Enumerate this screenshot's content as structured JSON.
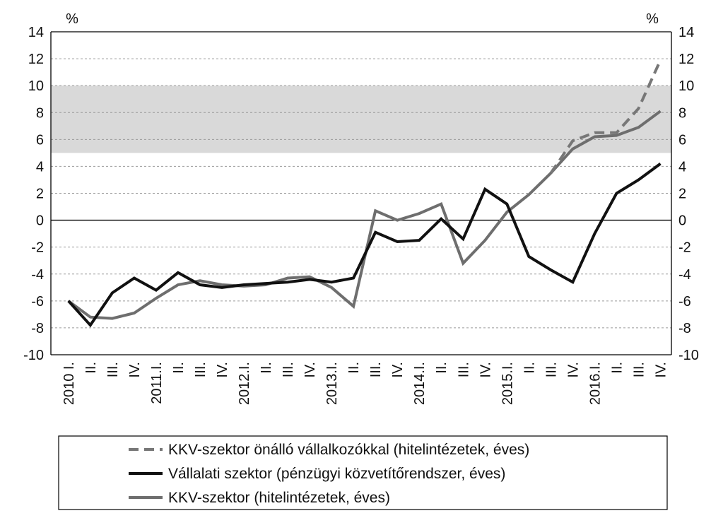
{
  "chart_data": {
    "type": "line",
    "y_unit_left": "%",
    "y_unit_right": "%",
    "ylim": [
      -10,
      14
    ],
    "yticks": [
      -10,
      -8,
      -6,
      -4,
      -2,
      0,
      2,
      4,
      6,
      8,
      10,
      12,
      14
    ],
    "grid": "horizontal dashed",
    "shaded_band": {
      "from": 5,
      "to": 10,
      "color": "#d9d9d9"
    },
    "categories": [
      "2010 I.",
      "II.",
      "III.",
      "IV.",
      "2011.I.",
      "II.",
      "III.",
      "IV.",
      "2012.I.",
      "II.",
      "III.",
      "IV.",
      "2013.I.",
      "II.",
      "III.",
      "IV.",
      "2014.I.",
      "II.",
      "III.",
      "IV.",
      "2015.I.",
      "II.",
      "III.",
      "IV.",
      "2016.I.",
      "II.",
      "III.",
      "IV."
    ],
    "series": [
      {
        "name": "KKV-szektor önálló vállalkozókkal (hitelintézetek, éves)",
        "color": "#777777",
        "dash": "dashed",
        "values": [
          null,
          null,
          null,
          null,
          null,
          null,
          null,
          null,
          null,
          null,
          null,
          null,
          null,
          null,
          null,
          null,
          null,
          null,
          null,
          null,
          null,
          null,
          3.5,
          5.9,
          6.5,
          6.5,
          8.3,
          11.9
        ]
      },
      {
        "name": "Vállalati szektor (pénzügyi közvetítőrendszer, éves)",
        "color": "#111111",
        "dash": "solid",
        "values": [
          -6.0,
          -7.8,
          -5.4,
          -4.3,
          -5.2,
          -3.9,
          -4.8,
          -5.0,
          -4.8,
          -4.7,
          -4.6,
          -4.4,
          -4.6,
          -4.3,
          -0.9,
          -1.6,
          -1.5,
          0.1,
          -1.4,
          2.3,
          1.2,
          -2.7,
          -3.7,
          -4.6,
          -1.0,
          2.0,
          3.0,
          4.2
        ]
      },
      {
        "name": "KKV-szektor (hitelintézetek, éves)",
        "color": "#6e6e6e",
        "dash": "solid",
        "values": [
          -6.0,
          -7.2,
          -7.3,
          -6.9,
          -5.8,
          -4.8,
          -4.5,
          -4.8,
          -4.9,
          -4.8,
          -4.3,
          -4.2,
          -5.0,
          -6.4,
          0.7,
          0.0,
          0.5,
          1.2,
          -3.2,
          -1.5,
          0.6,
          1.9,
          3.5,
          5.3,
          6.2,
          6.3,
          6.9,
          8.1
        ]
      }
    ]
  }
}
